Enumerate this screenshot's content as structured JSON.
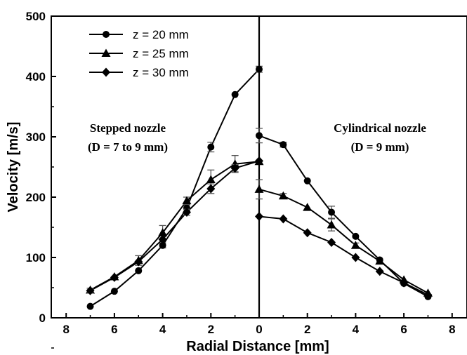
{
  "chart_data": {
    "type": "line",
    "ylabel": "Velocity [m/s]",
    "xlabel": "Radial Distance [mm]",
    "ylim": [
      0,
      500
    ],
    "y_ticks": [
      "0",
      "100",
      "200",
      "300",
      "400",
      "500"
    ],
    "x_ticks": [
      "8",
      "6",
      "4",
      "2",
      "0",
      "2",
      "4",
      "6",
      "8"
    ],
    "grid": false,
    "legend_position": "top-left",
    "annotations": [
      {
        "id": "left1",
        "text": "Stepped nozzle"
      },
      {
        "id": "left2",
        "text": "(D = 7 to 9 mm)"
      },
      {
        "id": "right1",
        "text": "Cylindrical nozzle"
      },
      {
        "id": "right2",
        "text": "(D = 9 mm)"
      }
    ],
    "panels": [
      {
        "name": "Stepped nozzle",
        "x": [
          -7,
          -6,
          -5,
          -4,
          -3,
          -2,
          -1,
          0
        ],
        "series": [
          {
            "name": "z = 20 mm",
            "marker": "circle",
            "values": [
              19,
              44,
              78,
              120,
              182,
              283,
              370,
              412
            ],
            "errors": [
              0,
              0,
              0,
              4,
              5,
              8,
              0,
              5
            ]
          },
          {
            "name": "z = 25 mm",
            "marker": "triangle",
            "values": [
              46,
              68,
              95,
              141,
              194,
              229,
              255,
              259
            ],
            "errors": [
              0,
              0,
              8,
              12,
              6,
              16,
              14,
              0
            ]
          },
          {
            "name": "z = 30 mm",
            "marker": "diamond",
            "values": [
              45,
              67,
              93,
              130,
              175,
              214,
              248,
              260
            ],
            "errors": [
              4,
              0,
              0,
              0,
              5,
              8,
              6,
              0
            ]
          }
        ]
      },
      {
        "name": "Cylindrical nozzle",
        "x": [
          0,
          1,
          2,
          3,
          4,
          5,
          6,
          7
        ],
        "series": [
          {
            "name": "z = 20 mm",
            "marker": "circle",
            "values": [
              302,
              287,
              227,
              175,
              135,
              96,
              57,
              35
            ],
            "errors": [
              12,
              4,
              0,
              10,
              0,
              0,
              0,
              0
            ]
          },
          {
            "name": "z = 25 mm",
            "marker": "triangle",
            "values": [
              213,
              202,
              183,
              154,
              120,
              94,
              63,
              41
            ],
            "errors": [
              16,
              4,
              0,
              10,
              4,
              0,
              0,
              0
            ]
          },
          {
            "name": "z = 30 mm",
            "marker": "diamond",
            "values": [
              168,
              164,
              141,
              125,
              100,
              77,
              58,
              38
            ],
            "errors": [
              0,
              0,
              0,
              0,
              0,
              0,
              0,
              0
            ]
          }
        ]
      }
    ]
  }
}
